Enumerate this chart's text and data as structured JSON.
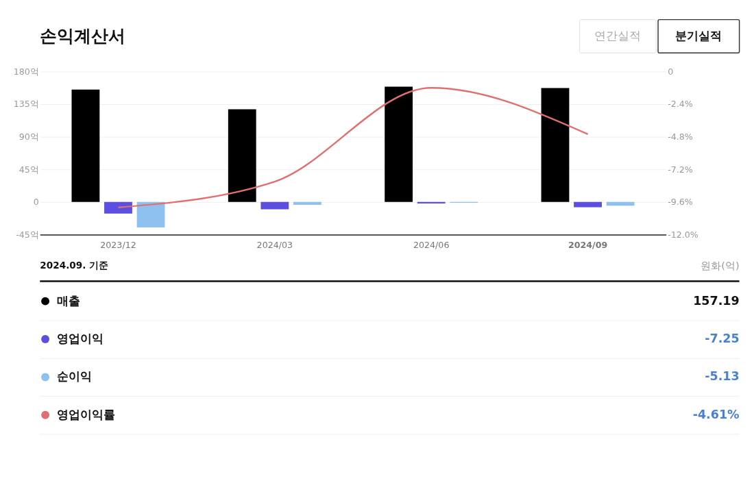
{
  "chart_data": {
    "type": "bar",
    "title": "손익계산서",
    "categories": [
      "2023/12",
      "2024/03",
      "2024/06",
      "2024/09"
    ],
    "series": [
      {
        "name": "매출",
        "color": "#000000",
        "values": [
          155,
          128,
          159,
          157.19
        ]
      },
      {
        "name": "영업이익",
        "color": "#5b4ee0",
        "values": [
          -16,
          -10,
          -2,
          -7.25
        ]
      },
      {
        "name": "순이익",
        "color": "#8fc1f0",
        "values": [
          -35,
          -4,
          -1,
          -5.13
        ]
      },
      {
        "name": "영업이익률",
        "color": "#e07070",
        "type": "line",
        "axis": "y2",
        "values": [
          -10.0,
          -8.1,
          -1.2,
          -4.61
        ]
      }
    ],
    "ylim": [
      -45,
      180
    ],
    "yticks": [
      {
        "value": -45,
        "label": "-45억"
      },
      0,
      {
        "value": 45,
        "label": "45억"
      },
      {
        "value": 90,
        "label": "90억"
      },
      {
        "value": 135,
        "label": "135억"
      },
      {
        "value": 180,
        "label": "180억"
      }
    ],
    "y2lim": [
      -12,
      0
    ],
    "y2ticks": [
      {
        "value": -12,
        "label": "-12.0%"
      },
      {
        "value": -9.6,
        "label": "-9.6%"
      },
      {
        "value": -7.2,
        "label": "-7.2%"
      },
      {
        "value": -4.8,
        "label": "-4.8%"
      },
      {
        "value": -2.4,
        "label": "-2.4%"
      },
      0
    ],
    "grid": "y",
    "legend": "bottom",
    "marker": "none",
    "line_style": "solid",
    "annotations": [
      "연간실적",
      "분기실적",
      "2024.09. 기준",
      "원화(억)",
      "157.19",
      "-7.25",
      "-5.13",
      "-4.61%"
    ]
  }
}
